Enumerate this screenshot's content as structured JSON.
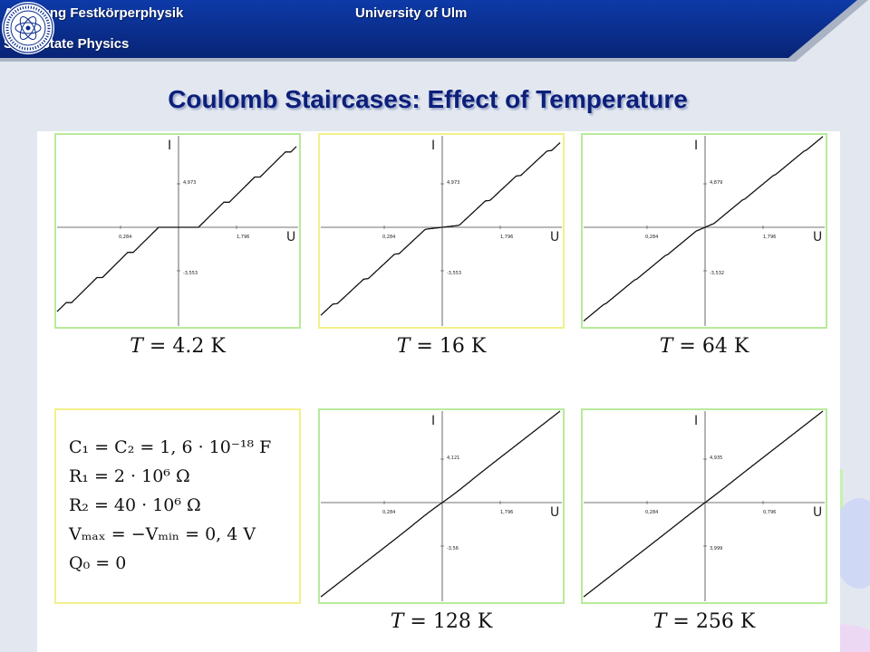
{
  "header": {
    "dept": "Abteilung Festkörperphysik",
    "dept_en": "Solid State Physics",
    "university": "University of Ulm"
  },
  "title": "Coulomb Staircases: Effect of Temperature",
  "colors": {
    "header_bg": "#0a2d8c",
    "title": "#0c1f7a",
    "green_frame": "#b8ea9a",
    "yellow_frame": "#f2f08a"
  },
  "axis_labels": {
    "current": "I",
    "voltage": "U"
  },
  "panels": [
    {
      "id": "t42",
      "caption_var": "T",
      "caption_val": "= 4.2 K",
      "ticks": {
        "x_neg": "0,284",
        "x_pos": "1,796",
        "y_pos": "4,973",
        "y_neg": "-3,553"
      },
      "shape": "step",
      "strength": 1.0
    },
    {
      "id": "t16",
      "caption_var": "T",
      "caption_val": "= 16 K",
      "ticks": {
        "x_neg": "0,284",
        "x_pos": "1,796",
        "y_pos": "4,973",
        "y_neg": "-3,553"
      },
      "shape": "step",
      "strength": 0.85
    },
    {
      "id": "t64",
      "caption_var": "T",
      "caption_val": "= 64 K",
      "ticks": {
        "x_neg": "0,284",
        "x_pos": "1,796",
        "y_pos": "4,879",
        "y_neg": "-3,532"
      },
      "shape": "step",
      "strength": 0.45
    },
    {
      "id": "t128",
      "caption_var": "T",
      "caption_val": "= 128 K",
      "ticks": {
        "x_neg": "0,284",
        "x_pos": "1,796",
        "y_pos": "4,121",
        "y_neg": "-3,56"
      },
      "shape": "smooth",
      "strength": 0.2
    },
    {
      "id": "t256",
      "caption_var": "T",
      "caption_val": "= 256 K",
      "ticks": {
        "x_neg": "0,284",
        "x_pos": "0,796",
        "y_pos": "4,935",
        "y_neg": "3,999"
      },
      "shape": "smooth",
      "strength": 0.08
    }
  ],
  "params": [
    "C₁ = C₂ = 1, 6 · 10⁻¹⁸ F",
    "R₁ = 2 · 10⁶ Ω",
    "R₂ = 40 · 10⁶ Ω",
    "Vₘₐₓ = −Vₘᵢₙ = 0, 4 V",
    "Q₀ = 0"
  ]
}
